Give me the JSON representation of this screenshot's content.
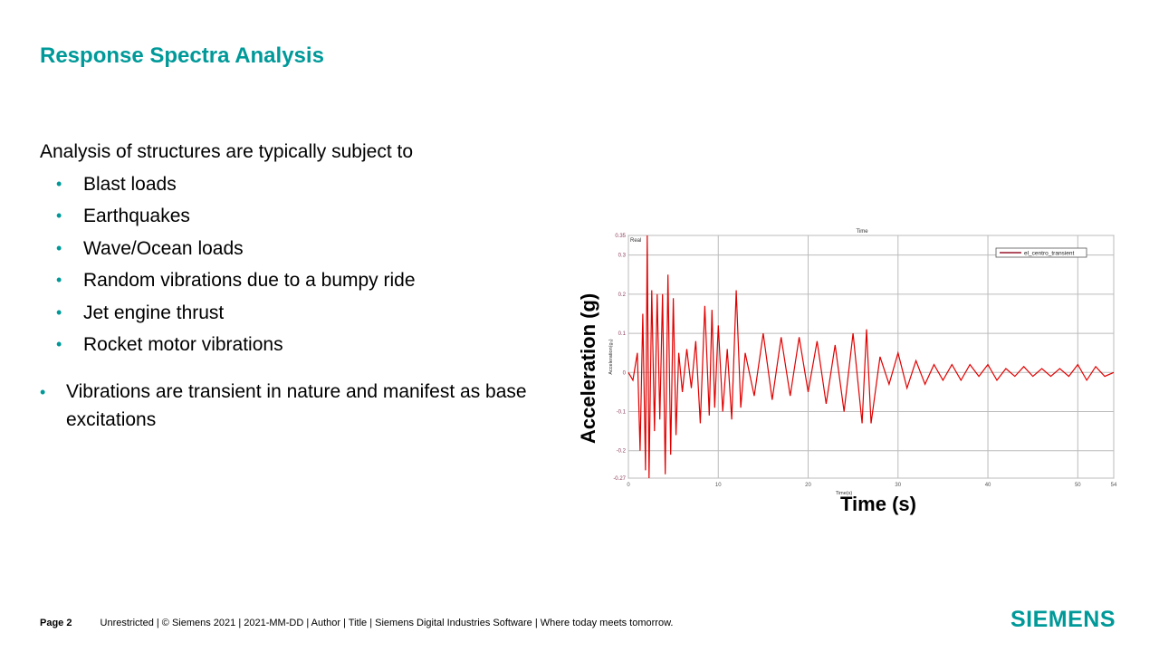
{
  "slide": {
    "title": "Response Spectra Analysis",
    "intro": "Analysis of structures are typically subject to",
    "bullets": [
      "Blast loads",
      "Earthquakes",
      "Wave/Ocean loads",
      "Random vibrations due to a bumpy ride",
      "Jet engine thrust",
      "Rocket motor vibrations"
    ],
    "paragraph_bullet": "Vibrations are transient in nature and manifest as base excitations",
    "bullet_glyph": "•",
    "accent_color": "#009999"
  },
  "figure": {
    "ylabel_big": "Acceleration (g)",
    "xlabel_big": "Time (s)"
  },
  "chart_data": {
    "type": "line",
    "title": "Time",
    "corner_label": "Real",
    "xlabel": "Time(s)",
    "ylabel": "Acceleration(g₀)",
    "xlim": [
      0,
      54
    ],
    "ylim": [
      -0.27,
      0.35
    ],
    "xticks": [
      "0",
      "10",
      "20",
      "30",
      "40",
      "50",
      "54"
    ],
    "yticks": [
      "-0.27",
      "-0.2",
      "-0.1",
      "0",
      "0.1",
      "0.2",
      "0.3",
      "0.35"
    ],
    "grid": true,
    "legend_position": "top-right",
    "series": [
      {
        "name": "el_centro_transient",
        "color": "#e00000",
        "x": [
          0,
          0.5,
          1,
          1.3,
          1.6,
          1.9,
          2.1,
          2.3,
          2.6,
          2.9,
          3.2,
          3.5,
          3.8,
          4.1,
          4.4,
          4.7,
          5.0,
          5.3,
          5.6,
          6,
          6.5,
          7,
          7.5,
          8,
          8.5,
          9,
          9.3,
          9.6,
          10,
          10.5,
          11,
          11.5,
          12,
          12.5,
          13,
          14,
          15,
          16,
          17,
          18,
          19,
          20,
          21,
          22,
          23,
          24,
          25,
          26,
          26.5,
          27,
          28,
          29,
          30,
          31,
          32,
          33,
          34,
          35,
          36,
          37,
          38,
          39,
          40,
          41,
          42,
          43,
          44,
          45,
          46,
          47,
          48,
          49,
          50,
          51,
          52,
          53,
          54
        ],
        "y": [
          0,
          -0.02,
          0.05,
          -0.2,
          0.15,
          -0.25,
          0.35,
          -0.27,
          0.21,
          -0.15,
          0.2,
          -0.12,
          0.2,
          -0.26,
          0.25,
          -0.21,
          0.19,
          -0.16,
          0.05,
          -0.05,
          0.06,
          -0.04,
          0.08,
          -0.13,
          0.17,
          -0.11,
          0.16,
          -0.09,
          0.12,
          -0.1,
          0.06,
          -0.12,
          0.21,
          -0.09,
          0.05,
          -0.06,
          0.1,
          -0.07,
          0.09,
          -0.06,
          0.09,
          -0.05,
          0.08,
          -0.08,
          0.07,
          -0.1,
          0.1,
          -0.13,
          0.11,
          -0.13,
          0.04,
          -0.03,
          0.05,
          -0.04,
          0.03,
          -0.03,
          0.02,
          -0.02,
          0.02,
          -0.02,
          0.02,
          -0.01,
          0.02,
          -0.02,
          0.01,
          -0.01,
          0.015,
          -0.01,
          0.01,
          -0.01,
          0.01,
          -0.01,
          0.02,
          -0.02,
          0.015,
          -0.01,
          0
        ]
      }
    ]
  },
  "footer": {
    "page": "Page 2",
    "text": "Unrestricted | © Siemens 2021 | 2021-MM-DD | Author | Title | Siemens Digital Industries Software | Where today meets tomorrow.",
    "logo": "SIEMENS"
  }
}
